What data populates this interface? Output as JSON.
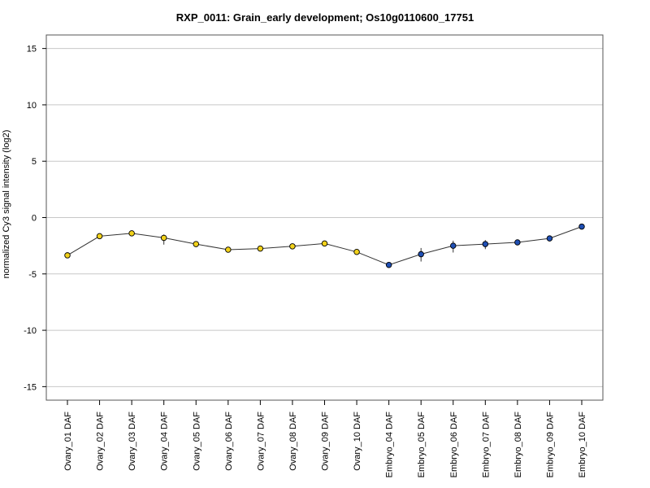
{
  "chart_data": {
    "type": "line",
    "title": "RXP_0011: Grain_early development; Os10g0110600_17751",
    "xlabel": "",
    "ylabel": "normalized Cy3 signal intensity (log2)",
    "ylim": [
      -16.2,
      16.2
    ],
    "yticks": [
      -15,
      -10,
      -5,
      0,
      5,
      10,
      15
    ],
    "grid": true,
    "categories": [
      "Ovary_01 DAF",
      "Ovary_02 DAF",
      "Ovary_03 DAF",
      "Ovary_04 DAF",
      "Ovary_05 DAF",
      "Ovary_06 DAF",
      "Ovary_07 DAF",
      "Ovary_08 DAF",
      "Ovary_09 DAF",
      "Ovary_10 DAF",
      "Embryo_04 DAF",
      "Embryo_05 DAF",
      "Embryo_06 DAF",
      "Embryo_07 DAF",
      "Embryo_08 DAF",
      "Embryo_09 DAF",
      "Embryo_10 DAF"
    ],
    "series": [
      {
        "values": [
          -3.35,
          -1.65,
          -1.4,
          -1.8,
          -2.35,
          -2.85,
          -2.75,
          -2.55,
          -2.3,
          -3.05,
          -4.2,
          -3.25,
          -2.5,
          -2.35,
          -2.2,
          -1.85,
          -0.8
        ],
        "error_low": [
          -3.5,
          -1.8,
          -1.55,
          -2.4,
          -2.5,
          -3.1,
          -2.9,
          -2.7,
          -2.45,
          -3.25,
          -4.35,
          -3.9,
          -3.1,
          -2.8,
          -2.35,
          -2.1,
          -0.9
        ],
        "error_high": [
          -3.2,
          -1.5,
          -1.25,
          -1.5,
          -2.2,
          -2.6,
          -2.6,
          -2.4,
          -2.15,
          -2.85,
          -4.05,
          -2.7,
          -2.05,
          -2.0,
          -2.05,
          -1.6,
          -0.7
        ],
        "marker_colors": [
          "#f2d21a",
          "#f2d21a",
          "#f2d21a",
          "#f2d21a",
          "#f2d21a",
          "#f2d21a",
          "#f2d21a",
          "#f2d21a",
          "#f2d21a",
          "#f2d21a",
          "#1f4fb4",
          "#1f4fb4",
          "#1f4fb4",
          "#1f4fb4",
          "#1f4fb4",
          "#1f4fb4",
          "#1f4fb4"
        ]
      }
    ],
    "colors": {
      "line": "#333333",
      "grid": "#c8c8c8",
      "frame": "#555555",
      "ovary": "#f2d21a",
      "embryo": "#1f4fb4"
    }
  }
}
